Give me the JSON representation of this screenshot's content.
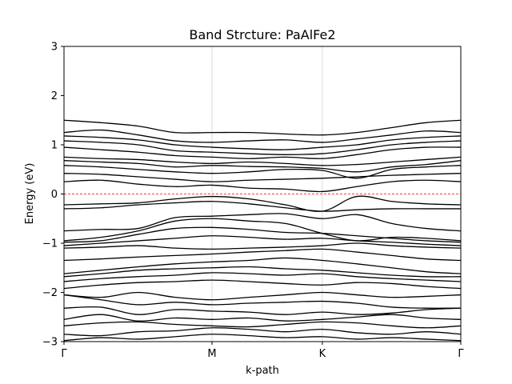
{
  "chart_data": {
    "type": "line",
    "title": "Band Strcture: PaAlFe2",
    "xlabel": "k-path",
    "ylabel": "Energy (eV)",
    "ylim": [
      -3,
      3
    ],
    "yticks": [
      -3,
      -2,
      -1,
      0,
      1,
      2,
      3
    ],
    "kpoints": [
      {
        "label": "Γ",
        "x": 0.0
      },
      {
        "label": "M",
        "x": 0.373
      },
      {
        "label": "K",
        "x": 0.651
      },
      {
        "label": "Γ",
        "x": 1.0
      }
    ],
    "xlim": [
      0.0,
      1.0
    ],
    "grid": "vertical lines at high-symmetry points",
    "fermi_level": {
      "energy": 0,
      "style": "dashed",
      "color": "#ff0000"
    },
    "line_color": "#000000",
    "band_x": [
      0.0,
      0.093,
      0.187,
      0.28,
      0.373,
      0.466,
      0.558,
      0.651,
      0.738,
      0.826,
      0.913,
      1.0
    ],
    "bands": [
      [
        -2.98,
        -2.92,
        -2.95,
        -2.9,
        -2.85,
        -2.88,
        -2.92,
        -2.9,
        -2.95,
        -2.92,
        -2.95,
        -2.98
      ],
      [
        -2.85,
        -2.88,
        -2.8,
        -2.78,
        -2.72,
        -2.75,
        -2.8,
        -2.75,
        -2.82,
        -2.85,
        -2.8,
        -2.85
      ],
      [
        -2.68,
        -2.62,
        -2.6,
        -2.65,
        -2.68,
        -2.7,
        -2.65,
        -2.6,
        -2.62,
        -2.68,
        -2.72,
        -2.68
      ],
      [
        -2.55,
        -2.45,
        -2.58,
        -2.52,
        -2.55,
        -2.52,
        -2.58,
        -2.55,
        -2.5,
        -2.45,
        -2.52,
        -2.55
      ],
      [
        -2.32,
        -2.3,
        -2.45,
        -2.35,
        -2.38,
        -2.4,
        -2.45,
        -2.4,
        -2.45,
        -2.42,
        -2.35,
        -2.32
      ],
      [
        -2.05,
        -2.15,
        -2.25,
        -2.2,
        -2.25,
        -2.22,
        -2.2,
        -2.18,
        -2.22,
        -2.3,
        -2.32,
        -2.32
      ],
      [
        -2.05,
        -2.1,
        -2.0,
        -2.1,
        -2.15,
        -2.1,
        -2.05,
        -2.0,
        -2.05,
        -2.1,
        -2.08,
        -2.05
      ],
      [
        -1.92,
        -1.85,
        -1.8,
        -1.78,
        -1.75,
        -1.78,
        -1.82,
        -1.85,
        -1.8,
        -1.82,
        -1.88,
        -1.92
      ],
      [
        -1.78,
        -1.72,
        -1.68,
        -1.65,
        -1.6,
        -1.62,
        -1.65,
        -1.62,
        -1.68,
        -1.72,
        -1.75,
        -1.78
      ],
      [
        -1.68,
        -1.62,
        -1.55,
        -1.52,
        -1.5,
        -1.48,
        -1.52,
        -1.55,
        -1.6,
        -1.65,
        -1.68,
        -1.68
      ],
      [
        -1.62,
        -1.55,
        -1.48,
        -1.42,
        -1.38,
        -1.35,
        -1.3,
        -1.35,
        -1.42,
        -1.5,
        -1.58,
        -1.62
      ],
      [
        -1.35,
        -1.32,
        -1.28,
        -1.25,
        -1.22,
        -1.18,
        -1.15,
        -1.12,
        -1.18,
        -1.25,
        -1.32,
        -1.35
      ],
      [
        -1.1,
        -1.08,
        -1.05,
        -1.1,
        -1.12,
        -1.1,
        -1.08,
        -1.05,
        -1.0,
        -1.05,
        -1.08,
        -1.1
      ],
      [
        -1.05,
        -1.0,
        -0.95,
        -0.9,
        -0.85,
        -0.88,
        -0.92,
        -0.9,
        -0.95,
        -0.98,
        -1.02,
        -1.05
      ],
      [
        -0.98,
        -0.95,
        -0.82,
        -0.7,
        -0.68,
        -0.72,
        -0.78,
        -0.8,
        -0.85,
        -0.9,
        -0.95,
        -0.98
      ],
      [
        -0.95,
        -0.88,
        -0.75,
        -0.55,
        -0.5,
        -0.55,
        -0.6,
        -0.8,
        -0.95,
        -0.88,
        -0.9,
        -0.95
      ],
      [
        -0.75,
        -0.72,
        -0.7,
        -0.48,
        -0.45,
        -0.42,
        -0.4,
        -0.5,
        -0.42,
        -0.6,
        -0.7,
        -0.75
      ],
      [
        -0.3,
        -0.28,
        -0.22,
        -0.18,
        -0.15,
        -0.2,
        -0.28,
        -0.35,
        -0.32,
        -0.3,
        -0.3,
        -0.3
      ],
      [
        -0.22,
        -0.2,
        -0.18,
        -0.1,
        -0.05,
        -0.1,
        -0.22,
        -0.35,
        -0.05,
        -0.15,
        -0.2,
        -0.22
      ],
      [
        0.25,
        0.28,
        0.2,
        0.15,
        0.18,
        0.12,
        0.1,
        0.05,
        0.15,
        0.25,
        0.28,
        0.25
      ],
      [
        0.42,
        0.4,
        0.35,
        0.3,
        0.25,
        0.28,
        0.3,
        0.32,
        0.35,
        0.38,
        0.4,
        0.42
      ],
      [
        0.58,
        0.55,
        0.5,
        0.45,
        0.42,
        0.45,
        0.5,
        0.48,
        0.32,
        0.5,
        0.55,
        0.58
      ],
      [
        0.68,
        0.65,
        0.62,
        0.55,
        0.58,
        0.56,
        0.55,
        0.52,
        0.45,
        0.55,
        0.6,
        0.68
      ],
      [
        0.75,
        0.72,
        0.7,
        0.65,
        0.62,
        0.65,
        0.62,
        0.58,
        0.6,
        0.65,
        0.7,
        0.75
      ],
      [
        0.95,
        0.9,
        0.85,
        0.78,
        0.75,
        0.72,
        0.75,
        0.72,
        0.8,
        0.9,
        0.95,
        0.95
      ],
      [
        1.08,
        1.05,
        1.0,
        0.88,
        0.85,
        0.82,
        0.8,
        0.82,
        0.9,
        1.0,
        1.05,
        1.08
      ],
      [
        1.18,
        1.15,
        1.1,
        1.0,
        0.95,
        0.92,
        0.9,
        0.95,
        1.0,
        1.1,
        1.15,
        1.18
      ],
      [
        1.25,
        1.3,
        1.2,
        1.08,
        1.05,
        1.08,
        1.1,
        1.05,
        1.12,
        1.2,
        1.28,
        1.25
      ],
      [
        1.5,
        1.45,
        1.38,
        1.25,
        1.25,
        1.25,
        1.22,
        1.2,
        1.25,
        1.35,
        1.45,
        1.5
      ]
    ]
  }
}
